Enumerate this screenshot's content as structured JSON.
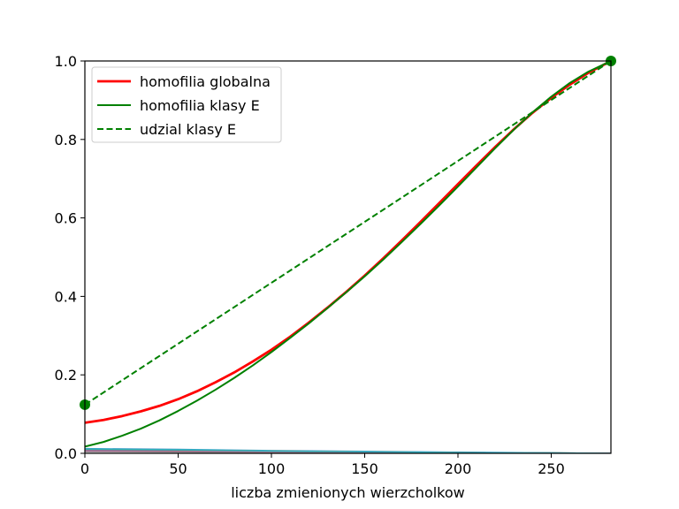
{
  "chart_data": {
    "type": "line",
    "title": "",
    "xlabel": "liczba zmienionych wierzcholkow",
    "ylabel": "",
    "xlim": [
      0,
      282
    ],
    "ylim": [
      0,
      1.0
    ],
    "xticks": [
      0,
      50,
      100,
      150,
      200,
      250
    ],
    "yticks": [
      0.0,
      0.2,
      0.4,
      0.6,
      0.8,
      1.0
    ],
    "xtick_labels": [
      "0",
      "50",
      "100",
      "150",
      "200",
      "250"
    ],
    "ytick_labels": [
      "0.0",
      "0.2",
      "0.4",
      "0.6",
      "0.8",
      "1.0"
    ],
    "grid": false,
    "legend_position": "top-left",
    "series": [
      {
        "name": "homofilia globalna",
        "color": "#ff0000",
        "style": "solid",
        "x": [
          0,
          10,
          20,
          30,
          40,
          50,
          60,
          70,
          80,
          90,
          100,
          110,
          120,
          130,
          140,
          150,
          160,
          170,
          180,
          190,
          200,
          210,
          220,
          230,
          240,
          250,
          260,
          270,
          282
        ],
        "y": [
          0.078,
          0.085,
          0.095,
          0.107,
          0.121,
          0.138,
          0.158,
          0.181,
          0.206,
          0.234,
          0.264,
          0.297,
          0.333,
          0.371,
          0.411,
          0.453,
          0.497,
          0.543,
          0.59,
          0.638,
          0.686,
          0.734,
          0.781,
          0.826,
          0.868,
          0.906,
          0.94,
          0.97,
          1.0
        ]
      },
      {
        "name": "homofilia klasy E",
        "color": "#008000",
        "style": "solid",
        "x": [
          0,
          10,
          20,
          30,
          40,
          50,
          60,
          70,
          80,
          90,
          100,
          110,
          120,
          130,
          140,
          150,
          160,
          170,
          180,
          190,
          200,
          210,
          220,
          230,
          240,
          250,
          260,
          270,
          282
        ],
        "y": [
          0.017,
          0.029,
          0.045,
          0.063,
          0.084,
          0.108,
          0.134,
          0.162,
          0.192,
          0.224,
          0.258,
          0.294,
          0.331,
          0.37,
          0.41,
          0.451,
          0.494,
          0.539,
          0.585,
          0.632,
          0.68,
          0.729,
          0.778,
          0.825,
          0.869,
          0.909,
          0.944,
          0.973,
          1.0
        ]
      },
      {
        "name": "udzial klasy E",
        "color": "#008000",
        "style": "dashed",
        "x": [
          0,
          282
        ],
        "y": [
          0.124,
          1.0
        ]
      }
    ],
    "markers": [
      {
        "x": 0,
        "y": 0.124,
        "color": "#008000"
      },
      {
        "x": 282,
        "y": 1.0,
        "color": "#008000"
      }
    ],
    "background_lines": [
      {
        "color": "#1f77b4",
        "x": [
          0,
          50,
          100,
          150,
          200,
          250,
          282
        ],
        "y": [
          0.012,
          0.01,
          0.007,
          0.005,
          0.003,
          0.001,
          0.0
        ]
      },
      {
        "color": "#ff7f0e",
        "x": [
          0,
          50,
          100,
          150,
          200,
          250,
          282
        ],
        "y": [
          0.01,
          0.008,
          0.006,
          0.004,
          0.002,
          0.001,
          0.0
        ]
      },
      {
        "color": "#2ca02c",
        "x": [
          0,
          50,
          100,
          150,
          200,
          250,
          282
        ],
        "y": [
          0.009,
          0.007,
          0.005,
          0.003,
          0.002,
          0.001,
          0.0
        ]
      },
      {
        "color": "#9467bd",
        "x": [
          0,
          50,
          100,
          150,
          200,
          250,
          282
        ],
        "y": [
          0.008,
          0.006,
          0.004,
          0.003,
          0.002,
          0.001,
          0.0
        ]
      },
      {
        "color": "#8c564b",
        "x": [
          0,
          50,
          100,
          150,
          200,
          250,
          282
        ],
        "y": [
          0.006,
          0.005,
          0.003,
          0.002,
          0.001,
          0.0,
          0.0
        ]
      },
      {
        "color": "#e377c2",
        "x": [
          0,
          50,
          100,
          150,
          200,
          250,
          282
        ],
        "y": [
          0.005,
          0.004,
          0.003,
          0.002,
          0.001,
          0.0,
          0.0
        ]
      },
      {
        "color": "#7f7f7f",
        "x": [
          0,
          50,
          100,
          150,
          200,
          250,
          282
        ],
        "y": [
          0.004,
          0.003,
          0.002,
          0.001,
          0.001,
          0.0,
          0.0
        ]
      },
      {
        "color": "#17becf",
        "x": [
          0,
          50,
          100,
          150,
          200,
          250,
          282
        ],
        "y": [
          0.011,
          0.009,
          0.006,
          0.004,
          0.002,
          0.001,
          0.0
        ]
      }
    ]
  }
}
